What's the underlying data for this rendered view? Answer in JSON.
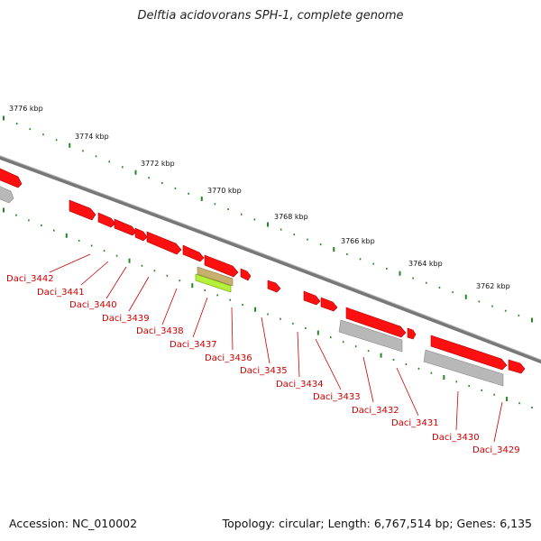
{
  "title": "Delftia acidovorans SPH-1, complete genome",
  "footer": {
    "accession": "Accession: NC_010002",
    "summary": "Topology: circular; Length: 6,767,514 bp; Genes: 6,135"
  },
  "colors": {
    "gene_forward": "#ff1010",
    "gene_label": "#cc0000",
    "backbone": "#888888",
    "tick": "#228822",
    "rna_gray": "#b8b8b8",
    "highlight_green": "#b6f03a",
    "highlight_khaki": "#c8b070"
  },
  "kbp_ticks": [
    "3776 kbp",
    "3774 kbp",
    "3772 kbp",
    "3770 kbp",
    "3768 kbp",
    "3766 kbp",
    "3764 kbp",
    "3762 kbp"
  ],
  "gene_labels": [
    "Daci_3442",
    "Daci_3441",
    "Daci_3440",
    "Daci_3439",
    "Daci_3438",
    "Daci_3437",
    "Daci_3436",
    "Daci_3435",
    "Daci_3434",
    "Daci_3433",
    "Daci_3432",
    "Daci_3431",
    "Daci_3430",
    "Daci_3429"
  ]
}
